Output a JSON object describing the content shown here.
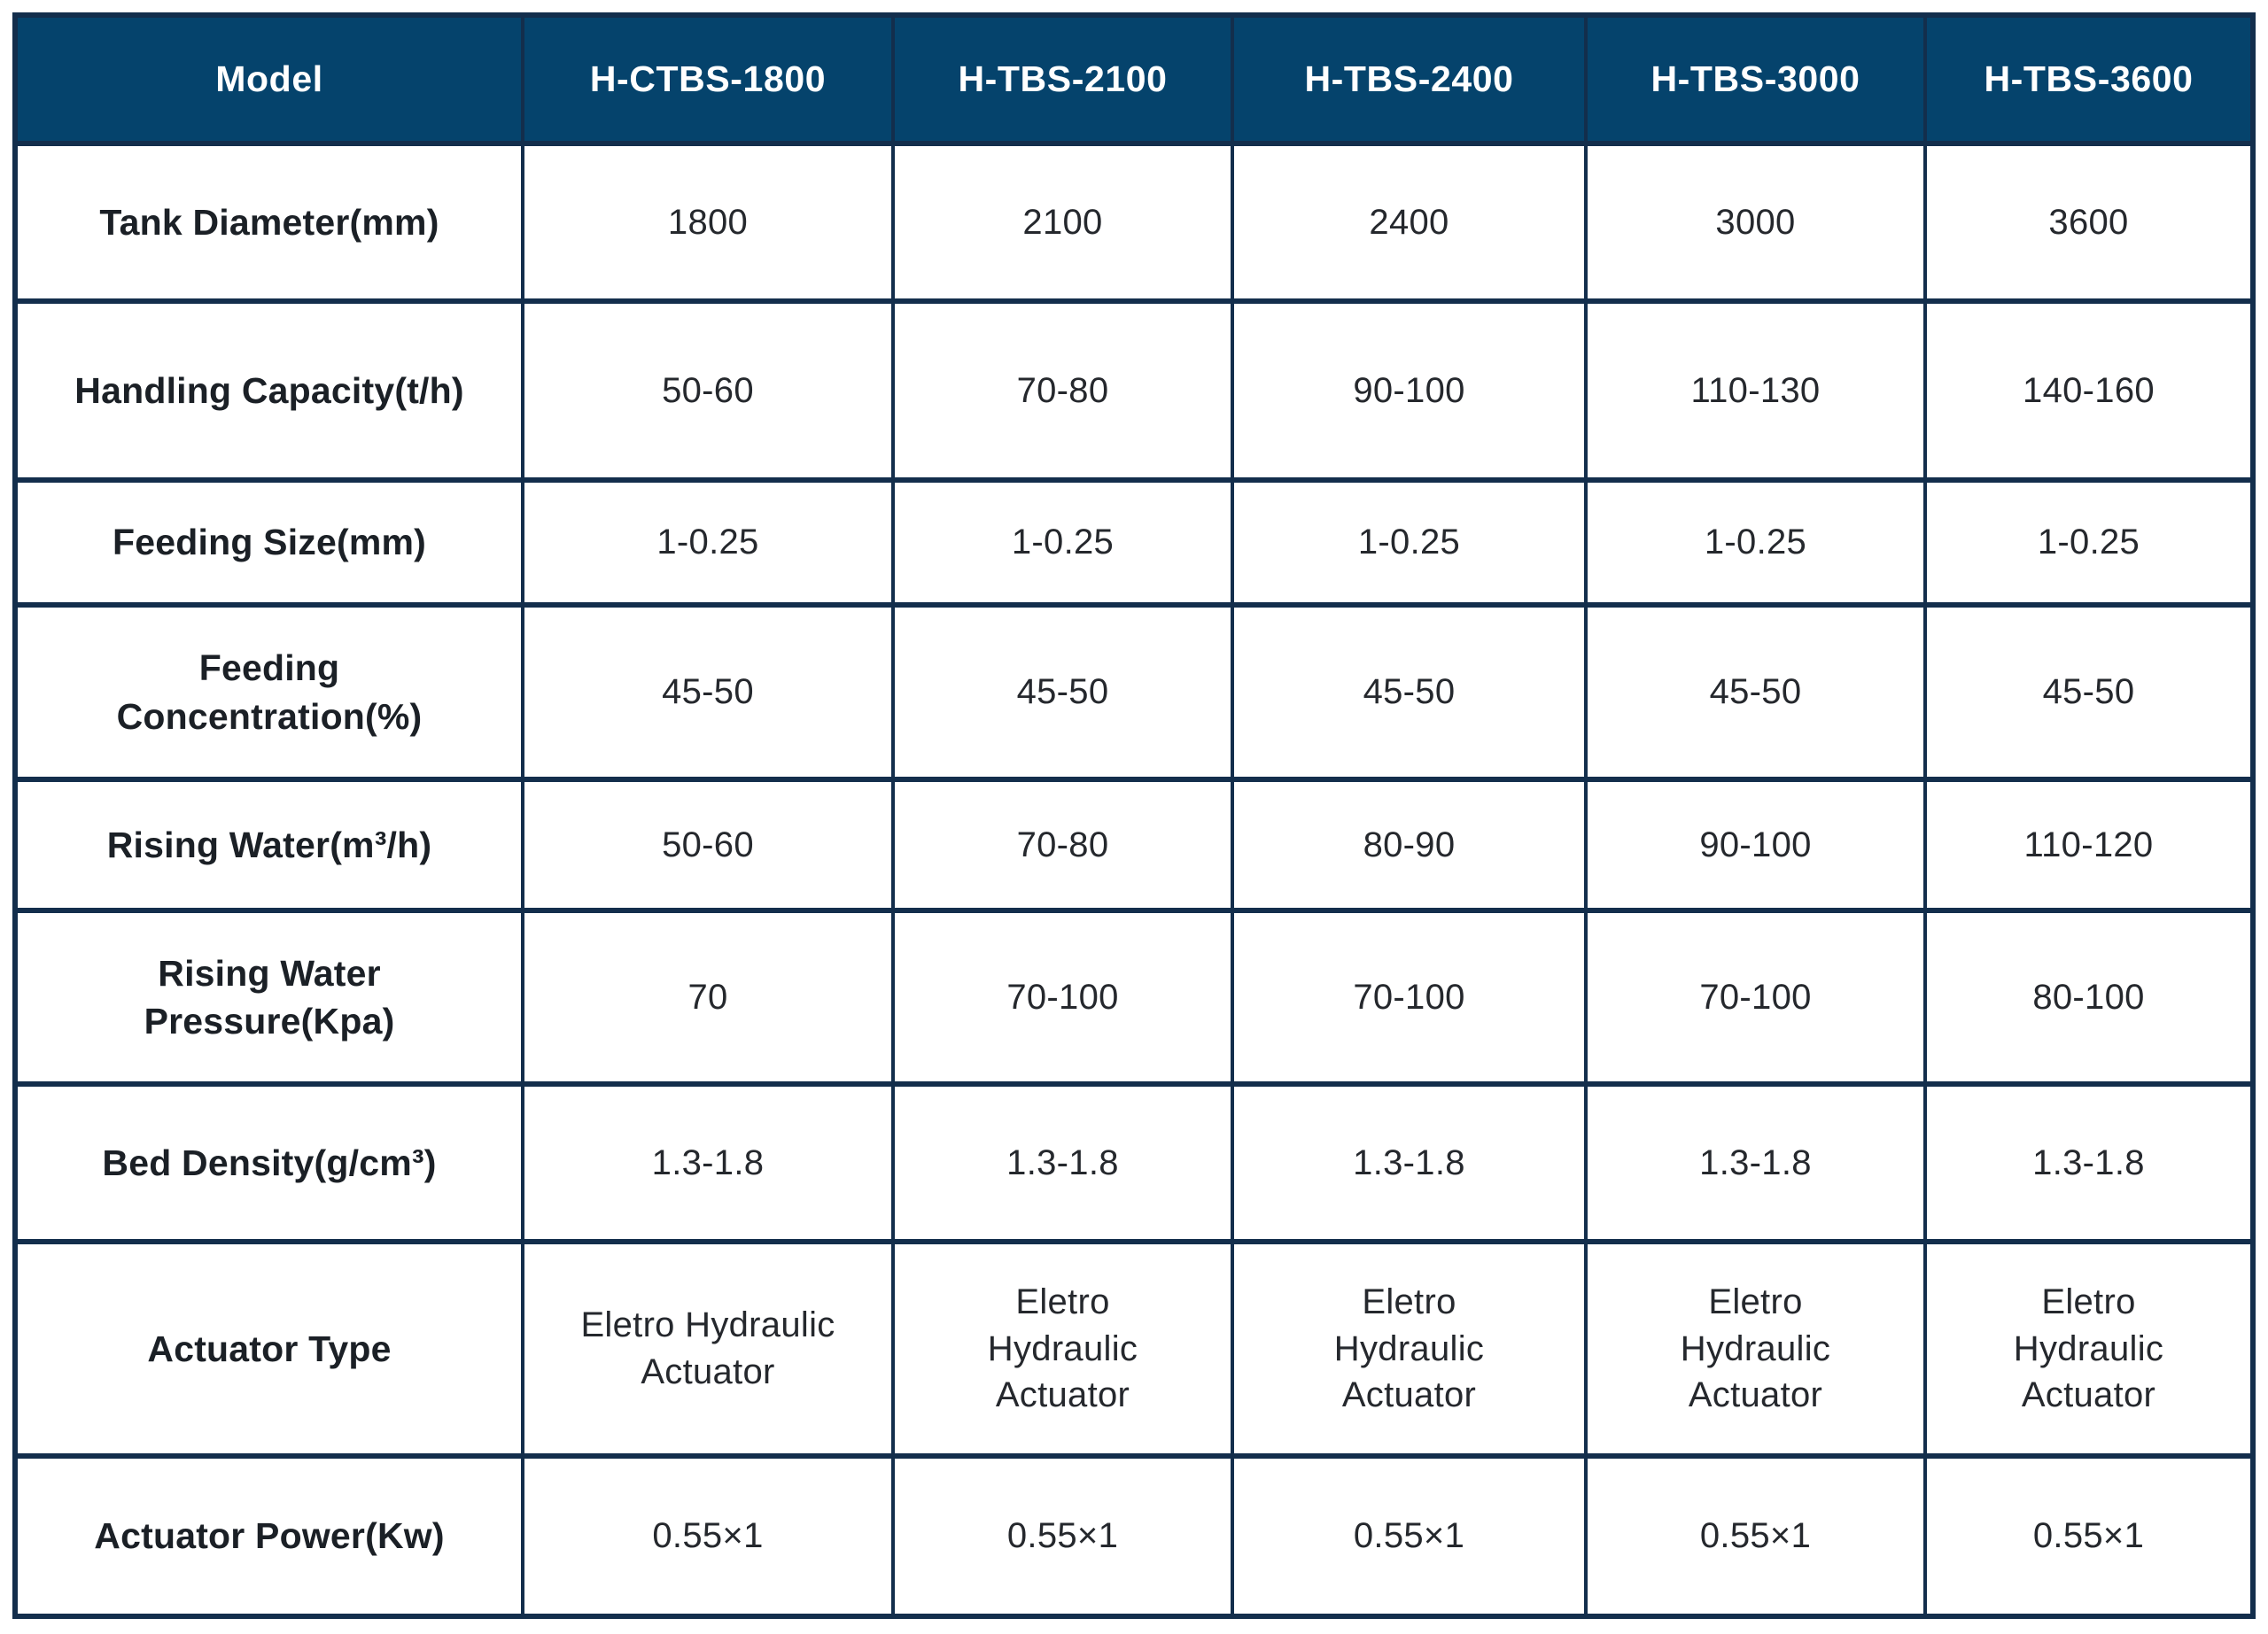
{
  "colors": {
    "header_background": "#05436C",
    "grid_border": "#132E4C",
    "header_text": "#FFFFFF",
    "label_text": "#1B2026",
    "value_text": "#25282D",
    "page_background": "#FFFFFF"
  },
  "table": {
    "header": {
      "model_label": "Model",
      "columns": [
        "H-CTBS-1800",
        "H-TBS-2100",
        "H-TBS-2400",
        "H-TBS-3000",
        "H-TBS-3600"
      ]
    },
    "rows": [
      {
        "label": "Tank Diameter(mm)",
        "values": [
          "1800",
          "2100",
          "2400",
          "3000",
          "3600"
        ]
      },
      {
        "label": "Handling Capacity(t/h)",
        "values": [
          "50-60",
          "70-80",
          "90-100",
          "110-130",
          "140-160"
        ]
      },
      {
        "label": "Feeding Size(mm)",
        "values": [
          "1-0.25",
          "1-0.25",
          "1-0.25",
          "1-0.25",
          "1-0.25"
        ]
      },
      {
        "label": "Feeding Concentration(%)",
        "values": [
          "45-50",
          "45-50",
          "45-50",
          "45-50",
          "45-50"
        ]
      },
      {
        "label": "Rising Water(m³/h)",
        "values": [
          "50-60",
          "70-80",
          "80-90",
          "90-100",
          "110-120"
        ]
      },
      {
        "label": "Rising Water Pressure(Kpa)",
        "values": [
          "70",
          "70-100",
          "70-100",
          "70-100",
          "80-100"
        ]
      },
      {
        "label": "Bed Density(g/cm³)",
        "values": [
          "1.3-1.8",
          "1.3-1.8",
          "1.3-1.8",
          "1.3-1.8",
          "1.3-1.8"
        ]
      },
      {
        "label": "Actuator Type",
        "values": [
          "Eletro Hydraulic Actuator",
          "Eletro Hydraulic Actuator",
          "Eletro Hydraulic Actuator",
          "Eletro Hydraulic Actuator",
          "Eletro Hydraulic Actuator"
        ]
      },
      {
        "label": "Actuator Power(Kw)",
        "values": [
          "0.55×1",
          "0.55×1",
          "0.55×1",
          "0.55×1",
          "0.55×1"
        ]
      }
    ]
  }
}
